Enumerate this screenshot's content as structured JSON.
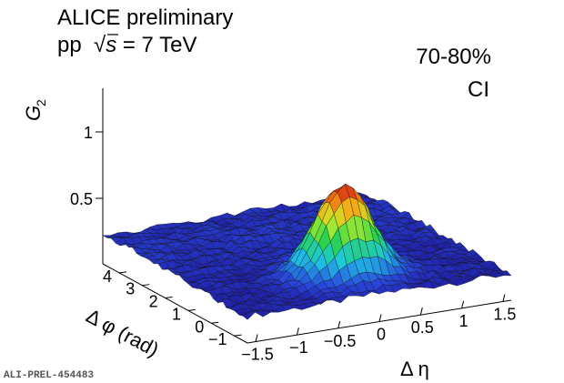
{
  "header": {
    "experiment": "ALICE preliminary",
    "system_prefix": "pp  ",
    "sqrt_symbol": "√",
    "s_symbol": "s",
    "energy": " = 7 TeV",
    "centrality": "70-80%",
    "charge_combination": "CI"
  },
  "figure_id": "ALI-PREL-454483",
  "chart_data": {
    "type": "surface",
    "zlabel_main": "G",
    "zlabel_sub": "2",
    "xlabel": "Δ η",
    "ylabel": "Δ φ (rad)",
    "x_ticks": [
      "−1.5",
      "−1",
      "−0.5",
      "0",
      "0.5",
      "1",
      "1.5"
    ],
    "y_ticks": [
      "−1",
      "0",
      "1",
      "2",
      "3",
      "4"
    ],
    "z_ticks": [
      "0.5",
      "1"
    ],
    "xlim": [
      -1.6,
      1.6
    ],
    "ylim": [
      -1.57,
      4.71
    ],
    "zlim": [
      0,
      1.3
    ],
    "peak": {
      "x": 0,
      "y": 0,
      "z": 0.88
    },
    "palette": "rainbow"
  }
}
